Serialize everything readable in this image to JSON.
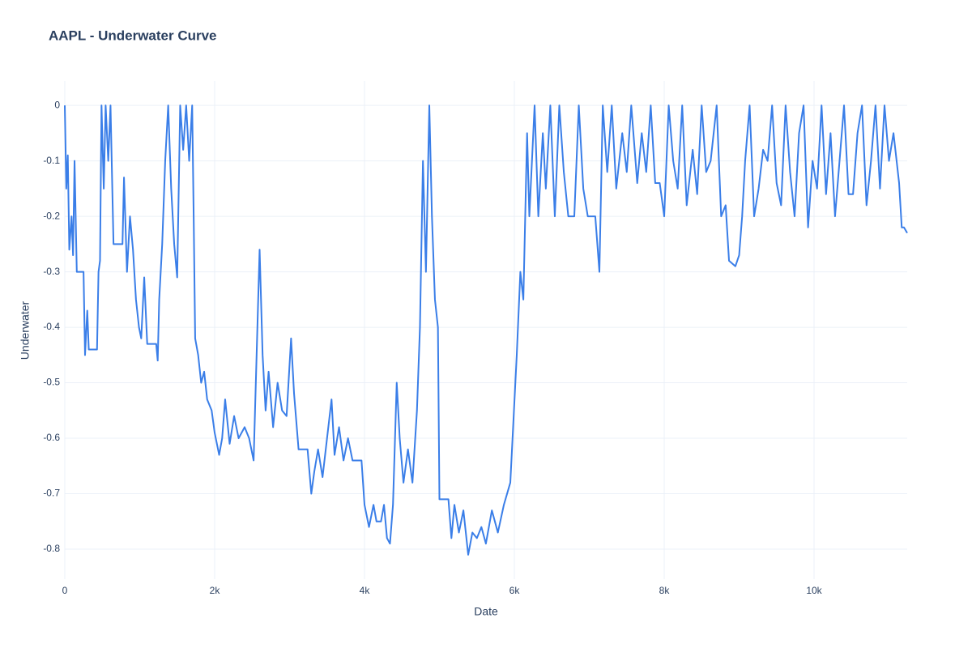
{
  "chart_data": {
    "type": "line",
    "title": "AAPL - Underwater Curve",
    "x_label": "Date",
    "y_label": "Underwater",
    "x": [
      0,
      20,
      40,
      60,
      90,
      110,
      130,
      160,
      250,
      270,
      300,
      320,
      430,
      450,
      470,
      490,
      520,
      545,
      580,
      610,
      650,
      770,
      790,
      830,
      870,
      910,
      950,
      990,
      1020,
      1060,
      1100,
      1220,
      1240,
      1260,
      1300,
      1340,
      1380,
      1420,
      1460,
      1500,
      1540,
      1580,
      1620,
      1660,
      1700,
      1720,
      1740,
      1780,
      1820,
      1860,
      1900,
      1960,
      2000,
      2060,
      2100,
      2140,
      2200,
      2260,
      2320,
      2400,
      2460,
      2520,
      2560,
      2600,
      2640,
      2680,
      2720,
      2780,
      2840,
      2900,
      2960,
      3020,
      3060,
      3120,
      3240,
      3290,
      3330,
      3380,
      3440,
      3500,
      3560,
      3600,
      3660,
      3720,
      3780,
      3840,
      3960,
      4000,
      4060,
      4120,
      4160,
      4220,
      4260,
      4300,
      4340,
      4380,
      4430,
      4470,
      4520,
      4580,
      4640,
      4700,
      4740,
      4780,
      4820,
      4865,
      4900,
      4940,
      4980,
      5000,
      5120,
      5160,
      5200,
      5260,
      5320,
      5384,
      5440,
      5500,
      5560,
      5620,
      5700,
      5780,
      5860,
      5946,
      6032,
      6080,
      6120,
      6170,
      6200,
      6270,
      6320,
      6380,
      6420,
      6480,
      6540,
      6600,
      6660,
      6720,
      6800,
      6860,
      6920,
      6980,
      7080,
      7135,
      7180,
      7240,
      7300,
      7360,
      7440,
      7500,
      7560,
      7640,
      7700,
      7760,
      7820,
      7880,
      7940,
      8000,
      8060,
      8120,
      8180,
      8240,
      8300,
      8380,
      8440,
      8500,
      8560,
      8620,
      8700,
      8760,
      8820,
      8865,
      8950,
      9000,
      9040,
      9080,
      9140,
      9200,
      9260,
      9320,
      9380,
      9440,
      9500,
      9560,
      9620,
      9680,
      9740,
      9800,
      9860,
      9920,
      9980,
      10040,
      10100,
      10160,
      10220,
      10280,
      10340,
      10400,
      10460,
      10520,
      10580,
      10640,
      10700,
      10760,
      10820,
      10880,
      10940,
      11000,
      11060,
      11135,
      11170,
      11200,
      11243
    ],
    "series": [
      {
        "name": "Underwater",
        "color": "#3a7ee8",
        "values": [
          0,
          -0.15,
          -0.09,
          -0.26,
          -0.2,
          -0.27,
          -0.1,
          -0.3,
          -0.3,
          -0.45,
          -0.37,
          -0.44,
          -0.44,
          -0.3,
          -0.28,
          0,
          -0.15,
          0,
          -0.1,
          0,
          -0.25,
          -0.25,
          -0.13,
          -0.3,
          -0.2,
          -0.26,
          -0.35,
          -0.4,
          -0.42,
          -0.31,
          -0.43,
          -0.43,
          -0.46,
          -0.35,
          -0.25,
          -0.1,
          0,
          -0.15,
          -0.25,
          -0.31,
          0,
          -0.08,
          0,
          -0.1,
          0,
          -0.2,
          -0.42,
          -0.45,
          -0.5,
          -0.48,
          -0.53,
          -0.55,
          -0.59,
          -0.63,
          -0.6,
          -0.53,
          -0.61,
          -0.56,
          -0.6,
          -0.58,
          -0.6,
          -0.64,
          -0.45,
          -0.26,
          -0.45,
          -0.55,
          -0.48,
          -0.58,
          -0.5,
          -0.55,
          -0.56,
          -0.42,
          -0.52,
          -0.62,
          -0.62,
          -0.7,
          -0.66,
          -0.62,
          -0.67,
          -0.6,
          -0.53,
          -0.63,
          -0.58,
          -0.64,
          -0.6,
          -0.64,
          -0.64,
          -0.72,
          -0.76,
          -0.72,
          -0.75,
          -0.75,
          -0.72,
          -0.78,
          -0.79,
          -0.72,
          -0.5,
          -0.6,
          -0.68,
          -0.62,
          -0.68,
          -0.55,
          -0.4,
          -0.1,
          -0.3,
          0,
          -0.2,
          -0.35,
          -0.4,
          -0.71,
          -0.71,
          -0.78,
          -0.72,
          -0.77,
          -0.73,
          -0.81,
          -0.77,
          -0.78,
          -0.76,
          -0.79,
          -0.73,
          -0.77,
          -0.72,
          -0.68,
          -0.45,
          -0.3,
          -0.35,
          -0.05,
          -0.2,
          0,
          -0.2,
          -0.05,
          -0.15,
          0,
          -0.2,
          0,
          -0.12,
          -0.2,
          -0.2,
          0,
          -0.15,
          -0.2,
          -0.2,
          -0.3,
          0,
          -0.12,
          0,
          -0.15,
          -0.05,
          -0.12,
          0,
          -0.14,
          -0.05,
          -0.12,
          0,
          -0.14,
          -0.14,
          -0.2,
          0,
          -0.1,
          -0.15,
          0,
          -0.18,
          -0.08,
          -0.16,
          0,
          -0.12,
          -0.1,
          0,
          -0.2,
          -0.18,
          -0.28,
          -0.29,
          -0.27,
          -0.2,
          -0.1,
          0,
          -0.2,
          -0.15,
          -0.08,
          -0.1,
          0,
          -0.14,
          -0.18,
          0,
          -0.12,
          -0.2,
          -0.05,
          0,
          -0.22,
          -0.1,
          -0.15,
          0,
          -0.16,
          -0.05,
          -0.2,
          -0.1,
          0,
          -0.16,
          -0.16,
          -0.05,
          0,
          -0.18,
          -0.1,
          0,
          -0.15,
          0,
          -0.1,
          -0.05,
          -0.14,
          -0.22,
          -0.22,
          -0.23
        ]
      }
    ],
    "xlim": [
      0,
      11243
    ],
    "ylim": [
      -0.854,
      0.044
    ],
    "xticks": [
      0,
      {
        "value": 2000,
        "label": "2k"
      },
      {
        "value": 4000,
        "label": "4k"
      },
      {
        "value": 6000,
        "label": "6k"
      },
      {
        "value": 8000,
        "label": "8k"
      },
      {
        "value": 10000,
        "label": "10k"
      }
    ],
    "yticks": [
      0,
      -0.1,
      -0.2,
      -0.3,
      -0.4,
      -0.5,
      -0.6,
      -0.7,
      -0.8
    ],
    "grid": true
  }
}
